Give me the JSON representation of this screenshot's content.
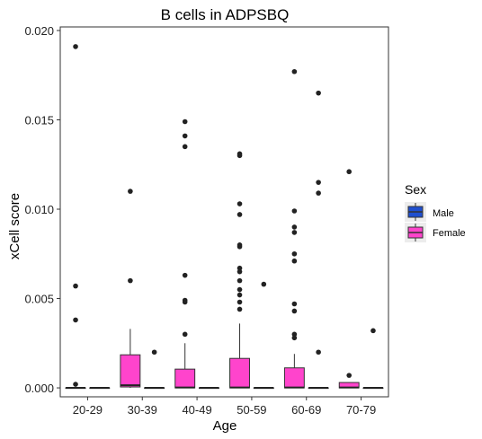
{
  "chart_data": {
    "type": "box",
    "title": "B cells in ADPSBQ",
    "xlabel": "Age",
    "ylabel": "xCell score",
    "categories": [
      "20-29",
      "30-39",
      "40-49",
      "50-59",
      "60-69",
      "70-79"
    ],
    "ylim": [
      -0.0005,
      0.0202
    ],
    "yticks": [
      0.0,
      0.005,
      0.01,
      0.015,
      0.02
    ],
    "ytick_labels": [
      "0.000",
      "0.005",
      "0.010",
      "0.015",
      "0.020"
    ],
    "grid": false,
    "legend": {
      "title": "Sex",
      "position": "right",
      "entries": [
        "Male",
        "Female"
      ]
    },
    "colors": {
      "Male": "#1f4fcf",
      "Female": "#ff44cc"
    },
    "series": [
      {
        "name": "Female",
        "boxes": [
          {
            "category": "20-29",
            "min": 0.0,
            "q1": 0.0,
            "median": 0.0,
            "q3": 0.0,
            "max": 0.0,
            "outliers": [
              0.0191,
              0.0057,
              0.0038,
              0.0002
            ]
          },
          {
            "category": "30-39",
            "min": 0.0,
            "q1": 5e-05,
            "median": 0.00015,
            "q3": 0.00185,
            "max": 0.0033,
            "outliers": [
              0.011,
              0.006
            ]
          },
          {
            "category": "40-49",
            "min": 0.0,
            "q1": 0.0,
            "median": 2e-05,
            "q3": 0.00105,
            "max": 0.0025,
            "outliers": [
              0.0149,
              0.0141,
              0.0135,
              0.0063,
              0.0049,
              0.0048,
              0.003
            ]
          },
          {
            "category": "50-59",
            "min": 0.0,
            "q1": 0.0,
            "median": 2e-05,
            "q3": 0.00165,
            "max": 0.0036,
            "outliers": [
              0.0131,
              0.013,
              0.0103,
              0.0097,
              0.008,
              0.0079,
              0.0067,
              0.0065,
              0.006,
              0.0055,
              0.0052,
              0.0048,
              0.0044
            ]
          },
          {
            "category": "60-69",
            "min": 0.0,
            "q1": 0.0,
            "median": 2e-05,
            "q3": 0.00112,
            "max": 0.0019,
            "outliers": [
              0.0177,
              0.0099,
              0.009,
              0.0087,
              0.0075,
              0.0071,
              0.0047,
              0.0043,
              0.003,
              0.0028
            ]
          },
          {
            "category": "70-79",
            "min": 0.0,
            "q1": 0.0,
            "median": 2e-05,
            "q3": 0.0003,
            "max": 0.0003,
            "outliers": [
              0.0121,
              0.0007
            ]
          }
        ]
      },
      {
        "name": "Male",
        "boxes": [
          {
            "category": "20-29",
            "min": 0.0,
            "q1": 0.0,
            "median": 0.0,
            "q3": 0.0,
            "max": 0.0,
            "outliers": []
          },
          {
            "category": "30-39",
            "min": 0.0,
            "q1": 0.0,
            "median": 0.0,
            "q3": 0.0,
            "max": 0.0,
            "outliers": [
              0.002
            ]
          },
          {
            "category": "40-49",
            "min": 0.0,
            "q1": 0.0,
            "median": 0.0,
            "q3": 0.0,
            "max": 0.0,
            "outliers": []
          },
          {
            "category": "50-59",
            "min": 0.0,
            "q1": 0.0,
            "median": 0.0,
            "q3": 0.0,
            "max": 0.0,
            "outliers": [
              0.0058
            ]
          },
          {
            "category": "60-69",
            "min": 0.0,
            "q1": 0.0,
            "median": 0.0,
            "q3": 0.0,
            "max": 0.0,
            "outliers": [
              0.0165,
              0.0115,
              0.0109,
              0.002
            ]
          },
          {
            "category": "70-79",
            "min": 0.0,
            "q1": 0.0,
            "median": 0.0,
            "q3": 0.0,
            "max": 0.0,
            "outliers": [
              0.0032
            ]
          }
        ]
      }
    ]
  }
}
